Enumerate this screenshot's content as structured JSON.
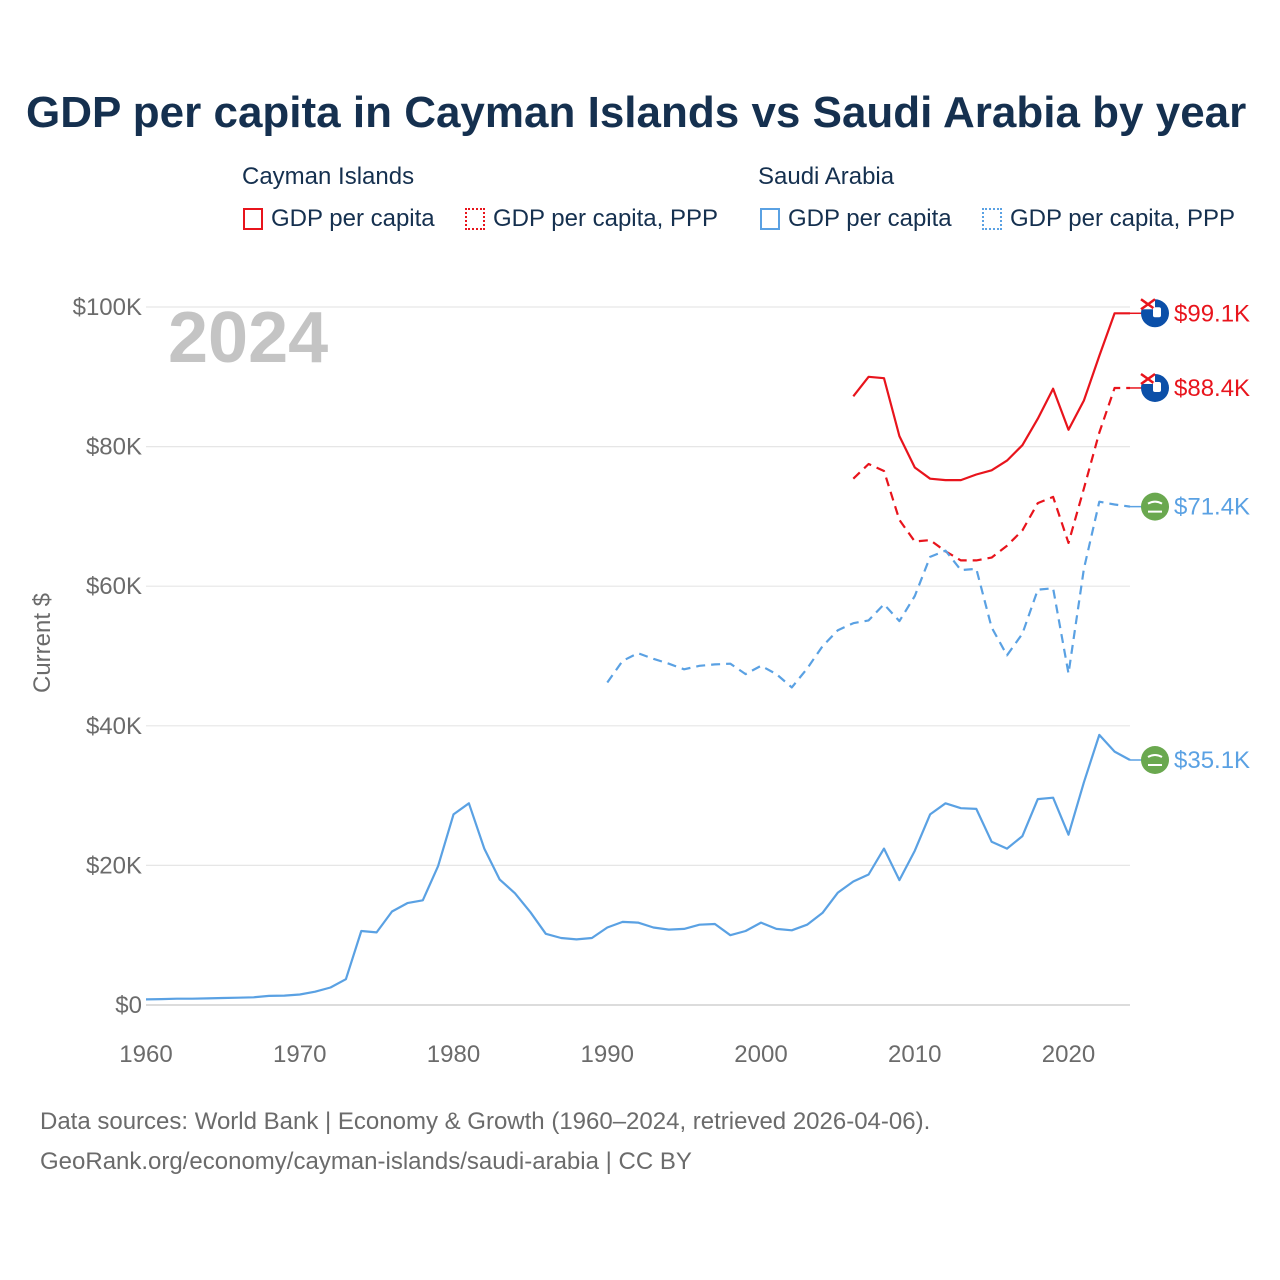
{
  "title": "GDP per capita in Cayman Islands vs Saudi Arabia by year",
  "legend": {
    "groups": [
      {
        "name": "Cayman Islands",
        "items": [
          "GDP per capita",
          "GDP per capita, PPP"
        ],
        "color": "#e8141c"
      },
      {
        "name": "Saudi Arabia",
        "items": [
          "GDP per capita",
          "GDP per capita, PPP"
        ],
        "color": "#5aa1e3"
      }
    ]
  },
  "footer": {
    "line1": "Data sources: World Bank | Economy & Growth (1960–2024, retrieved 2026-04-06).",
    "line2": "GeoRank.org/economy/cayman-islands/saudi-arabia | CC BY"
  },
  "chart_data": {
    "type": "line",
    "year_label": "2024",
    "ylabel": "Current $",
    "xlim": [
      1960,
      2024
    ],
    "ylim": [
      0,
      100000
    ],
    "x_ticks": [
      1960,
      1970,
      1980,
      1990,
      2000,
      2010,
      2020
    ],
    "y_ticks": [
      {
        "value": 0,
        "label": "$0"
      },
      {
        "value": 20000,
        "label": "$20K"
      },
      {
        "value": 40000,
        "label": "$40K"
      },
      {
        "value": 60000,
        "label": "$60K"
      },
      {
        "value": 80000,
        "label": "$80K"
      },
      {
        "value": 100000,
        "label": "$100K"
      }
    ],
    "series": [
      {
        "name": "Cayman Islands GDP per capita",
        "country": "Cayman Islands",
        "color": "#e8141c",
        "dash": "solid",
        "end_label": "$99.1K",
        "flag": "cayman-flag",
        "x": [
          2006,
          2007,
          2008,
          2009,
          2010,
          2011,
          2012,
          2013,
          2014,
          2015,
          2016,
          2017,
          2018,
          2019,
          2020,
          2021,
          2022,
          2023,
          2024
        ],
        "values": [
          87200,
          90000,
          89800,
          81500,
          77000,
          75400,
          75200,
          75200,
          76000,
          76600,
          78000,
          80200,
          84000,
          88300,
          82400,
          86600,
          93000,
          99100,
          99100
        ]
      },
      {
        "name": "Cayman Islands GDP per capita, PPP",
        "country": "Cayman Islands",
        "color": "#e8141c",
        "dash": "dashed",
        "end_label": "$88.4K",
        "flag": "cayman-flag",
        "x": [
          2006,
          2007,
          2008,
          2009,
          2010,
          2011,
          2012,
          2013,
          2014,
          2015,
          2016,
          2017,
          2018,
          2019,
          2020,
          2021,
          2022,
          2023,
          2024
        ],
        "values": [
          75400,
          77500,
          76500,
          69500,
          66400,
          66600,
          65000,
          63700,
          63700,
          64100,
          65800,
          68000,
          71900,
          72800,
          66200,
          74000,
          82000,
          88400,
          88400
        ]
      },
      {
        "name": "Saudi Arabia GDP per capita, PPP",
        "country": "Saudi Arabia",
        "color": "#5aa1e3",
        "dash": "dashed",
        "end_label": "$71.4K",
        "flag": "saudi-flag",
        "x": [
          1990,
          1991,
          1992,
          1993,
          1994,
          1995,
          1996,
          1997,
          1998,
          1999,
          2000,
          2001,
          2002,
          2003,
          2004,
          2005,
          2006,
          2007,
          2008,
          2009,
          2010,
          2011,
          2012,
          2013,
          2014,
          2015,
          2016,
          2017,
          2018,
          2019,
          2020,
          2021,
          2022,
          2023,
          2024
        ],
        "values": [
          46200,
          49300,
          50400,
          49600,
          48900,
          48100,
          48600,
          48800,
          48900,
          47400,
          48600,
          47400,
          45500,
          48200,
          51400,
          53700,
          54700,
          55100,
          57400,
          55000,
          58600,
          64200,
          65100,
          62300,
          62500,
          54100,
          50100,
          53200,
          59500,
          59700,
          47500,
          62500,
          72100,
          71700,
          71400
        ]
      },
      {
        "name": "Saudi Arabia GDP per capita",
        "country": "Saudi Arabia",
        "color": "#5aa1e3",
        "dash": "solid",
        "end_label": "$35.1K",
        "flag": "saudi-flag",
        "x": [
          1960,
          1961,
          1962,
          1963,
          1964,
          1965,
          1966,
          1967,
          1968,
          1969,
          1970,
          1971,
          1972,
          1973,
          1974,
          1975,
          1976,
          1977,
          1978,
          1979,
          1980,
          1981,
          1982,
          1983,
          1984,
          1985,
          1986,
          1987,
          1988,
          1989,
          1990,
          1991,
          1992,
          1993,
          1994,
          1995,
          1996,
          1997,
          1998,
          1999,
          2000,
          2001,
          2002,
          2003,
          2004,
          2005,
          2006,
          2007,
          2008,
          2009,
          2010,
          2011,
          2012,
          2013,
          2014,
          2015,
          2016,
          2017,
          2018,
          2019,
          2020,
          2021,
          2022,
          2023,
          2024
        ],
        "values": [
          800,
          850,
          900,
          900,
          950,
          1000,
          1050,
          1100,
          1300,
          1350,
          1500,
          1900,
          2500,
          3700,
          10600,
          10400,
          13400,
          14600,
          15000,
          19900,
          27300,
          28900,
          22400,
          18000,
          16000,
          13300,
          10200,
          9600,
          9400,
          9600,
          11100,
          11900,
          11800,
          11100,
          10800,
          10900,
          11500,
          11600,
          10000,
          10600,
          11800,
          10900,
          10700,
          11500,
          13200,
          16100,
          17700,
          18700,
          22400,
          17900,
          22100,
          27300,
          28900,
          28200,
          28100,
          23400,
          22400,
          24200,
          29500,
          29700,
          24400,
          31900,
          38700,
          36300,
          35100
        ]
      }
    ]
  }
}
